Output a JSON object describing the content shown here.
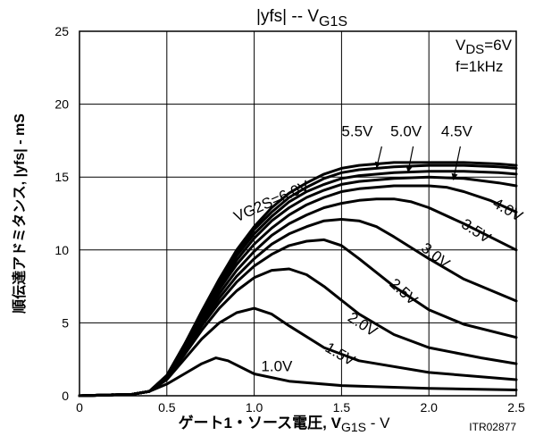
{
  "chart_data": {
    "type": "line",
    "title": "|yfs| -- VG1S",
    "title_main": "|yfs|  --  V",
    "title_sub": "G1S",
    "xlabel_main": "ゲート1・ソース電圧, V",
    "xlabel_sub": "G1S",
    "xlabel_suffix": " - V",
    "ylabel": "順伝達アドミタンス, |yfs| - mS",
    "condition_vds_main": "V",
    "condition_vds_sub": "DS",
    "condition_vds_value": "=6V",
    "condition_f": "f=1kHz",
    "code": "ITR02877",
    "xlim": [
      0,
      2.5
    ],
    "ylim": [
      0,
      25
    ],
    "x_ticks": [
      "0",
      "0.5",
      "1.0",
      "1.5",
      "2.0",
      "2.5"
    ],
    "y_ticks": [
      "0",
      "5",
      "10",
      "15",
      "20",
      "25"
    ],
    "grid": true,
    "series": [
      {
        "name": "1.0V",
        "points": [
          [
            0,
            0
          ],
          [
            0.3,
            0.1
          ],
          [
            0.4,
            0.3
          ],
          [
            0.5,
            0.8
          ],
          [
            0.6,
            1.5
          ],
          [
            0.7,
            2.2
          ],
          [
            0.78,
            2.6
          ],
          [
            0.85,
            2.4
          ],
          [
            1.0,
            1.5
          ],
          [
            1.2,
            1.0
          ],
          [
            1.5,
            0.7
          ],
          [
            2.0,
            0.5
          ],
          [
            2.5,
            0.4
          ]
        ]
      },
      {
        "name": "1.5V",
        "points": [
          [
            0,
            0
          ],
          [
            0.3,
            0.1
          ],
          [
            0.4,
            0.3
          ],
          [
            0.5,
            1.1
          ],
          [
            0.6,
            2.5
          ],
          [
            0.7,
            3.9
          ],
          [
            0.8,
            5.0
          ],
          [
            0.9,
            5.7
          ],
          [
            1.0,
            6.0
          ],
          [
            1.1,
            5.6
          ],
          [
            1.2,
            4.8
          ],
          [
            1.4,
            3.3
          ],
          [
            1.6,
            2.4
          ],
          [
            2.0,
            1.6
          ],
          [
            2.5,
            1.1
          ]
        ]
      },
      {
        "name": "2.0V",
        "points": [
          [
            0,
            0
          ],
          [
            0.3,
            0.1
          ],
          [
            0.4,
            0.3
          ],
          [
            0.5,
            1.2
          ],
          [
            0.6,
            2.8
          ],
          [
            0.7,
            4.5
          ],
          [
            0.8,
            6.0
          ],
          [
            0.9,
            7.2
          ],
          [
            1.0,
            8.1
          ],
          [
            1.1,
            8.6
          ],
          [
            1.2,
            8.7
          ],
          [
            1.3,
            8.3
          ],
          [
            1.4,
            7.5
          ],
          [
            1.6,
            5.6
          ],
          [
            1.8,
            4.2
          ],
          [
            2.0,
            3.3
          ],
          [
            2.3,
            2.6
          ],
          [
            2.5,
            2.2
          ]
        ]
      },
      {
        "name": "2.5V",
        "points": [
          [
            0,
            0
          ],
          [
            0.3,
            0.1
          ],
          [
            0.4,
            0.3
          ],
          [
            0.5,
            1.2
          ],
          [
            0.6,
            3.0
          ],
          [
            0.7,
            4.8
          ],
          [
            0.8,
            6.4
          ],
          [
            0.9,
            7.8
          ],
          [
            1.0,
            8.9
          ],
          [
            1.1,
            9.7
          ],
          [
            1.2,
            10.3
          ],
          [
            1.3,
            10.6
          ],
          [
            1.4,
            10.7
          ],
          [
            1.5,
            10.3
          ],
          [
            1.6,
            9.4
          ],
          [
            1.8,
            7.5
          ],
          [
            2.0,
            5.9
          ],
          [
            2.2,
            4.9
          ],
          [
            2.5,
            4.0
          ]
        ]
      },
      {
        "name": "3.0V",
        "points": [
          [
            0,
            0
          ],
          [
            0.3,
            0.1
          ],
          [
            0.4,
            0.3
          ],
          [
            0.5,
            1.3
          ],
          [
            0.6,
            3.1
          ],
          [
            0.7,
            5.0
          ],
          [
            0.8,
            6.7
          ],
          [
            0.9,
            8.2
          ],
          [
            1.0,
            9.4
          ],
          [
            1.1,
            10.4
          ],
          [
            1.2,
            11.1
          ],
          [
            1.3,
            11.6
          ],
          [
            1.4,
            12.0
          ],
          [
            1.5,
            12.1
          ],
          [
            1.6,
            12.0
          ],
          [
            1.7,
            11.6
          ],
          [
            1.8,
            10.9
          ],
          [
            2.0,
            9.4
          ],
          [
            2.2,
            8.0
          ],
          [
            2.5,
            6.5
          ]
        ]
      },
      {
        "name": "3.5V",
        "points": [
          [
            0,
            0
          ],
          [
            0.3,
            0.1
          ],
          [
            0.4,
            0.3
          ],
          [
            0.5,
            1.3
          ],
          [
            0.6,
            3.2
          ],
          [
            0.7,
            5.2
          ],
          [
            0.8,
            7.0
          ],
          [
            0.9,
            8.6
          ],
          [
            1.0,
            9.9
          ],
          [
            1.1,
            11.0
          ],
          [
            1.2,
            11.8
          ],
          [
            1.3,
            12.4
          ],
          [
            1.4,
            12.9
          ],
          [
            1.5,
            13.2
          ],
          [
            1.6,
            13.4
          ],
          [
            1.7,
            13.5
          ],
          [
            1.8,
            13.5
          ],
          [
            1.9,
            13.3
          ],
          [
            2.0,
            12.9
          ],
          [
            2.2,
            11.8
          ],
          [
            2.5,
            10.0
          ]
        ]
      },
      {
        "name": "4.0V",
        "points": [
          [
            0,
            0
          ],
          [
            0.3,
            0.1
          ],
          [
            0.4,
            0.3
          ],
          [
            0.5,
            1.3
          ],
          [
            0.6,
            3.3
          ],
          [
            0.7,
            5.4
          ],
          [
            0.8,
            7.3
          ],
          [
            0.9,
            9.0
          ],
          [
            1.0,
            10.4
          ],
          [
            1.1,
            11.5
          ],
          [
            1.2,
            12.4
          ],
          [
            1.3,
            13.1
          ],
          [
            1.4,
            13.6
          ],
          [
            1.5,
            14.0
          ],
          [
            1.6,
            14.2
          ],
          [
            1.8,
            14.4
          ],
          [
            2.0,
            14.4
          ],
          [
            2.1,
            14.3
          ],
          [
            2.2,
            14.0
          ],
          [
            2.35,
            13.4
          ],
          [
            2.5,
            12.6
          ]
        ]
      },
      {
        "name": "4.5V",
        "points": [
          [
            0,
            0
          ],
          [
            0.3,
            0.1
          ],
          [
            0.4,
            0.3
          ],
          [
            0.5,
            1.3
          ],
          [
            0.6,
            3.3
          ],
          [
            0.7,
            5.5
          ],
          [
            0.8,
            7.5
          ],
          [
            0.9,
            9.3
          ],
          [
            1.0,
            10.8
          ],
          [
            1.1,
            12.0
          ],
          [
            1.2,
            12.9
          ],
          [
            1.3,
            13.6
          ],
          [
            1.4,
            14.1
          ],
          [
            1.5,
            14.5
          ],
          [
            1.6,
            14.7
          ],
          [
            1.8,
            14.9
          ],
          [
            2.0,
            15.0
          ],
          [
            2.2,
            14.9
          ],
          [
            2.4,
            14.6
          ],
          [
            2.5,
            14.4
          ]
        ]
      },
      {
        "name": "5.0V",
        "points": [
          [
            0,
            0
          ],
          [
            0.3,
            0.1
          ],
          [
            0.4,
            0.3
          ],
          [
            0.5,
            1.4
          ],
          [
            0.6,
            3.4
          ],
          [
            0.7,
            5.6
          ],
          [
            0.8,
            7.7
          ],
          [
            0.9,
            9.6
          ],
          [
            1.0,
            11.1
          ],
          [
            1.1,
            12.3
          ],
          [
            1.2,
            13.3
          ],
          [
            1.3,
            14.0
          ],
          [
            1.4,
            14.5
          ],
          [
            1.5,
            14.9
          ],
          [
            1.6,
            15.1
          ],
          [
            1.8,
            15.3
          ],
          [
            2.0,
            15.4
          ],
          [
            2.2,
            15.4
          ],
          [
            2.4,
            15.3
          ],
          [
            2.5,
            15.2
          ]
        ]
      },
      {
        "name": "5.5V",
        "points": [
          [
            0,
            0
          ],
          [
            0.3,
            0.1
          ],
          [
            0.4,
            0.3
          ],
          [
            0.5,
            1.4
          ],
          [
            0.6,
            3.5
          ],
          [
            0.7,
            5.7
          ],
          [
            0.8,
            7.9
          ],
          [
            0.9,
            9.8
          ],
          [
            1.0,
            11.4
          ],
          [
            1.1,
            12.6
          ],
          [
            1.2,
            13.6
          ],
          [
            1.3,
            14.3
          ],
          [
            1.4,
            14.9
          ],
          [
            1.5,
            15.3
          ],
          [
            1.6,
            15.5
          ],
          [
            1.8,
            15.7
          ],
          [
            2.0,
            15.8
          ],
          [
            2.2,
            15.8
          ],
          [
            2.4,
            15.7
          ],
          [
            2.5,
            15.6
          ]
        ]
      },
      {
        "name": "6.0V",
        "label": "VG2S=6.0V",
        "points": [
          [
            0,
            0
          ],
          [
            0.3,
            0.1
          ],
          [
            0.4,
            0.3
          ],
          [
            0.5,
            1.4
          ],
          [
            0.6,
            3.5
          ],
          [
            0.7,
            5.8
          ],
          [
            0.8,
            8.0
          ],
          [
            0.9,
            10.0
          ],
          [
            1.0,
            11.6
          ],
          [
            1.1,
            12.9
          ],
          [
            1.2,
            13.9
          ],
          [
            1.3,
            14.6
          ],
          [
            1.4,
            15.2
          ],
          [
            1.5,
            15.6
          ],
          [
            1.6,
            15.8
          ],
          [
            1.8,
            16.0
          ],
          [
            2.0,
            16.0
          ],
          [
            2.2,
            16.0
          ],
          [
            2.4,
            15.9
          ],
          [
            2.5,
            15.8
          ]
        ]
      }
    ],
    "annotations": [
      {
        "text": "1.0V",
        "x": 1.04,
        "y": 1.7,
        "rotate": 0
      },
      {
        "text": "1.5V",
        "x": 1.4,
        "y": 3.1,
        "rotate": 30
      },
      {
        "text": "2.0V",
        "x": 1.53,
        "y": 5.2,
        "rotate": 33
      },
      {
        "text": "2.5V",
        "x": 1.77,
        "y": 7.6,
        "rotate": 42
      },
      {
        "text": "3.0V",
        "x": 1.95,
        "y": 10.0,
        "rotate": 38
      },
      {
        "text": "3.5V",
        "x": 2.18,
        "y": 11.6,
        "rotate": 33
      },
      {
        "text": "4.0V",
        "x": 2.36,
        "y": 13.0,
        "rotate": 30
      },
      {
        "text": "VG2S=6.0V",
        "x": 0.9,
        "y": 11.9,
        "rotate": -24
      },
      {
        "text": "5.5V",
        "x": 1.5,
        "y": 17.8,
        "rotate": 0
      },
      {
        "text": "5.0V",
        "x": 1.78,
        "y": 17.8,
        "rotate": 0
      },
      {
        "text": "4.5V",
        "x": 2.07,
        "y": 17.8,
        "rotate": 0
      }
    ],
    "arrows": [
      {
        "from": [
          1.73,
          17.1
        ],
        "to": [
          1.7,
          15.6
        ]
      },
      {
        "from": [
          1.91,
          17.1
        ],
        "to": [
          1.88,
          15.3
        ]
      },
      {
        "from": [
          2.18,
          17.1
        ],
        "to": [
          2.14,
          14.8
        ]
      }
    ]
  }
}
